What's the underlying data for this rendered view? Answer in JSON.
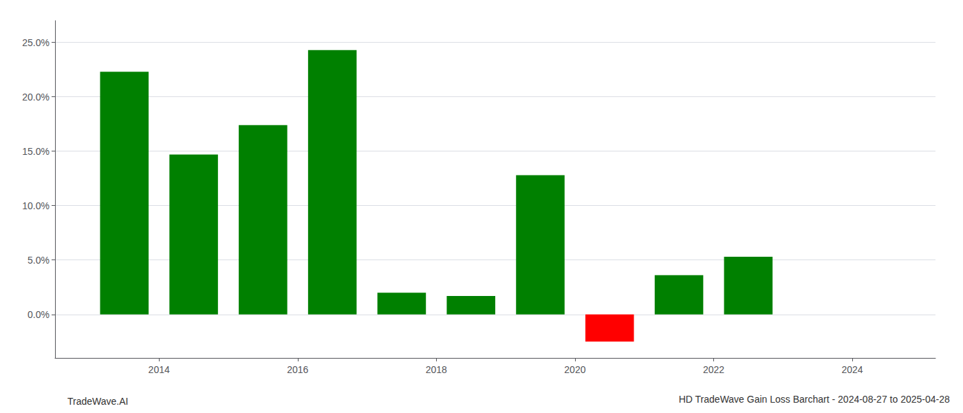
{
  "chart_data": {
    "type": "bar",
    "title": "HD TradeWave Gain Loss Barchart - 2024-08-27 to 2025-04-28",
    "annotations": [
      "TradeWave.AI"
    ],
    "x": [
      2013.5,
      2014.5,
      2015.5,
      2016.5,
      2017.5,
      2018.5,
      2019.5,
      2020.5,
      2021.5,
      2022.5
    ],
    "values": [
      0.223,
      0.147,
      0.174,
      0.243,
      0.02,
      0.017,
      0.128,
      -0.025,
      0.036,
      0.053
    ],
    "colors": [
      "#008000",
      "#008000",
      "#008000",
      "#008000",
      "#008000",
      "#008000",
      "#008000",
      "#ff0000",
      "#008000",
      "#008000"
    ],
    "xlim": [
      2012.5,
      2025.2
    ],
    "xticks": [
      2014,
      2016,
      2018,
      2020,
      2022,
      2024
    ],
    "ylim": [
      -0.04,
      0.27
    ],
    "yticks": [
      {
        "value": 0.0,
        "label": "0.0%"
      },
      {
        "value": 0.05,
        "label": "5.0%"
      },
      {
        "value": 0.1,
        "label": "10.0%"
      },
      {
        "value": 0.15,
        "label": "15.0%"
      },
      {
        "value": 0.2,
        "label": "20.0%"
      },
      {
        "value": 0.25,
        "label": "25.0%"
      }
    ],
    "grid": true
  }
}
